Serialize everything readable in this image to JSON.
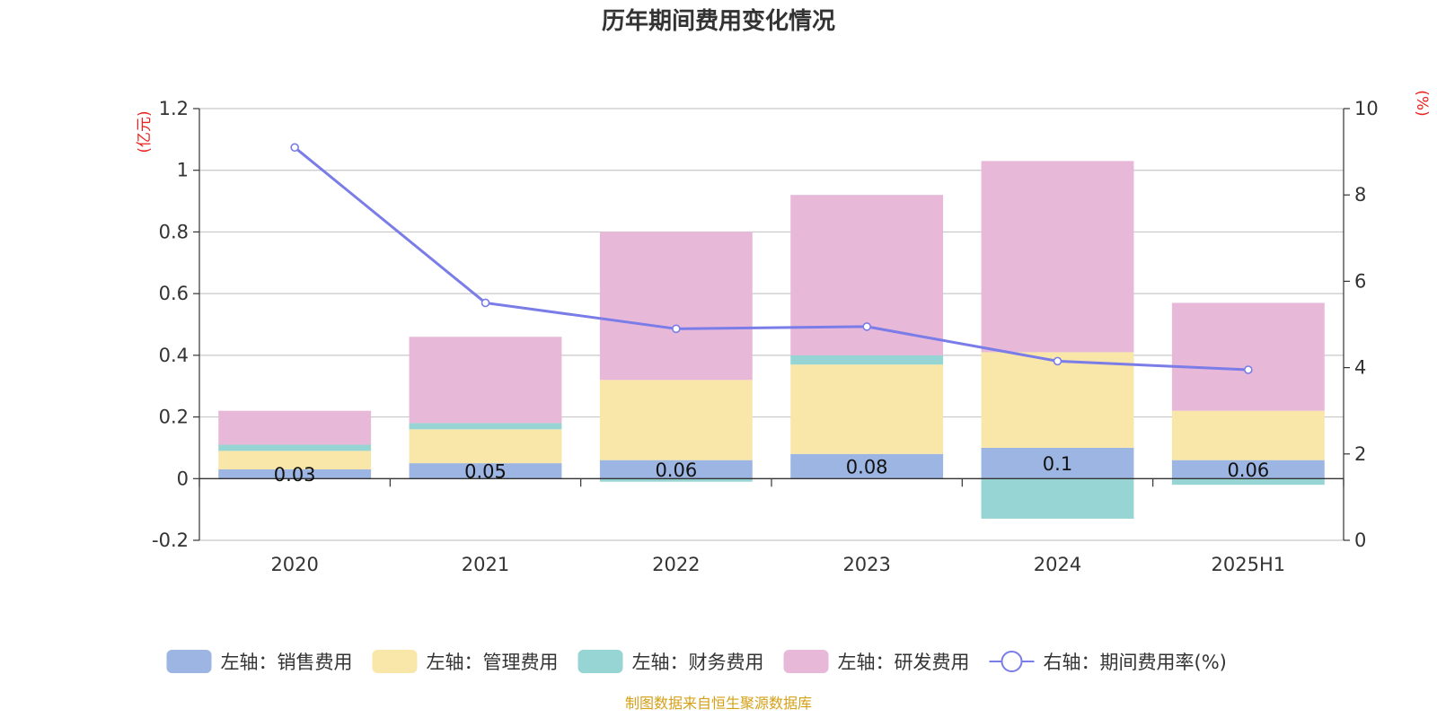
{
  "chart_data": {
    "type": "bar",
    "title": "历年期间费用变化情况",
    "categories": [
      "2020",
      "2021",
      "2022",
      "2023",
      "2024",
      "2025H1"
    ],
    "left_axis": {
      "unit": "(亿元)",
      "ylim": [
        -0.2,
        1.2
      ],
      "ticks": [
        "-0.2",
        "0",
        "0.2",
        "0.4",
        "0.6",
        "0.8",
        "1",
        "1.2"
      ]
    },
    "right_axis": {
      "unit": "(%)",
      "ylim": [
        0,
        10
      ],
      "ticks": [
        "0",
        "2",
        "4",
        "6",
        "8",
        "10"
      ]
    },
    "grid": true,
    "legend_position": "bottom",
    "series": [
      {
        "name": "左轴：销售费用",
        "type": "bar",
        "axis": "left",
        "color": "#9db5e2",
        "values": [
          0.03,
          0.05,
          0.06,
          0.08,
          0.1,
          0.06
        ],
        "labels": [
          "0.03",
          "0.05",
          "0.06",
          "0.08",
          "0.1",
          "0.06"
        ]
      },
      {
        "name": "左轴：管理费用",
        "type": "bar",
        "axis": "left",
        "color": "#f8e7a8",
        "values": [
          0.06,
          0.11,
          0.26,
          0.29,
          0.31,
          0.16
        ]
      },
      {
        "name": "左轴：财务费用",
        "type": "bar",
        "axis": "left",
        "color": "#97d4d4",
        "values": [
          0.02,
          0.02,
          -0.01,
          0.03,
          -0.13,
          -0.02
        ]
      },
      {
        "name": "左轴：研发费用",
        "type": "bar",
        "axis": "left",
        "color": "#e8b8d9",
        "values": [
          0.11,
          0.28,
          0.48,
          0.52,
          0.62,
          0.35
        ]
      },
      {
        "name": "右轴：期间费用率(%)",
        "type": "line",
        "axis": "right",
        "color": "#7a7ce8",
        "values": [
          9.1,
          5.5,
          4.9,
          4.95,
          4.15,
          3.95
        ]
      }
    ],
    "source": "制图数据来自恒生聚源数据库"
  }
}
